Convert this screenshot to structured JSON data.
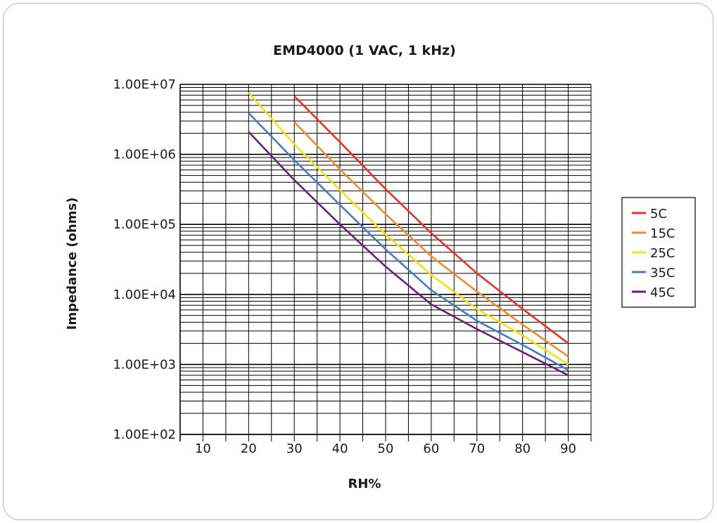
{
  "chart_data": {
    "type": "line",
    "title": "EMD4000 (1 VAC, 1 kHz)",
    "xlabel": "RH%",
    "ylabel": "Impedance (ohms)",
    "x_ticks": [
      "10",
      "20",
      "30",
      "40",
      "50",
      "60",
      "70",
      "80",
      "90"
    ],
    "y_ticks": [
      "1.00E+02",
      "1.00E+03",
      "1.00E+04",
      "1.00E+05",
      "1.00E+06",
      "1.00E+07"
    ],
    "y_scale": "log",
    "xlim": [
      5,
      95
    ],
    "ylim": [
      100,
      10000000
    ],
    "grid": true,
    "legend_position": "right",
    "series": [
      {
        "name": "5C",
        "color": "#e8312a",
        "x": [
          30,
          40,
          50,
          60,
          70,
          80,
          90
        ],
        "y": [
          6800000,
          1500000,
          320000,
          75000,
          20000,
          6200,
          2000
        ]
      },
      {
        "name": "15C",
        "color": "#f28c28",
        "x": [
          30,
          40,
          50,
          60,
          70,
          80,
          90
        ],
        "y": [
          2900000,
          610000,
          140000,
          35000,
          11000,
          3700,
          1300
        ]
      },
      {
        "name": "25C",
        "color": "#f7e10a",
        "x": [
          20,
          30,
          40,
          50,
          60,
          70,
          80,
          90
        ],
        "y": [
          7600000,
          1400000,
          310000,
          72000,
          19000,
          6200,
          2600,
          1000
        ]
      },
      {
        "name": "35C",
        "color": "#3f7fc4",
        "x": [
          20,
          30,
          40,
          50,
          60,
          70,
          80,
          90
        ],
        "y": [
          3900000,
          830000,
          190000,
          44000,
          11500,
          4200,
          1900,
          830
        ]
      },
      {
        "name": "45C",
        "color": "#6b1d7a",
        "x": [
          20,
          30,
          40,
          50,
          60,
          70,
          80,
          90
        ],
        "y": [
          2100000,
          430000,
          100000,
          25000,
          7200,
          3200,
          1500,
          700
        ]
      }
    ]
  }
}
